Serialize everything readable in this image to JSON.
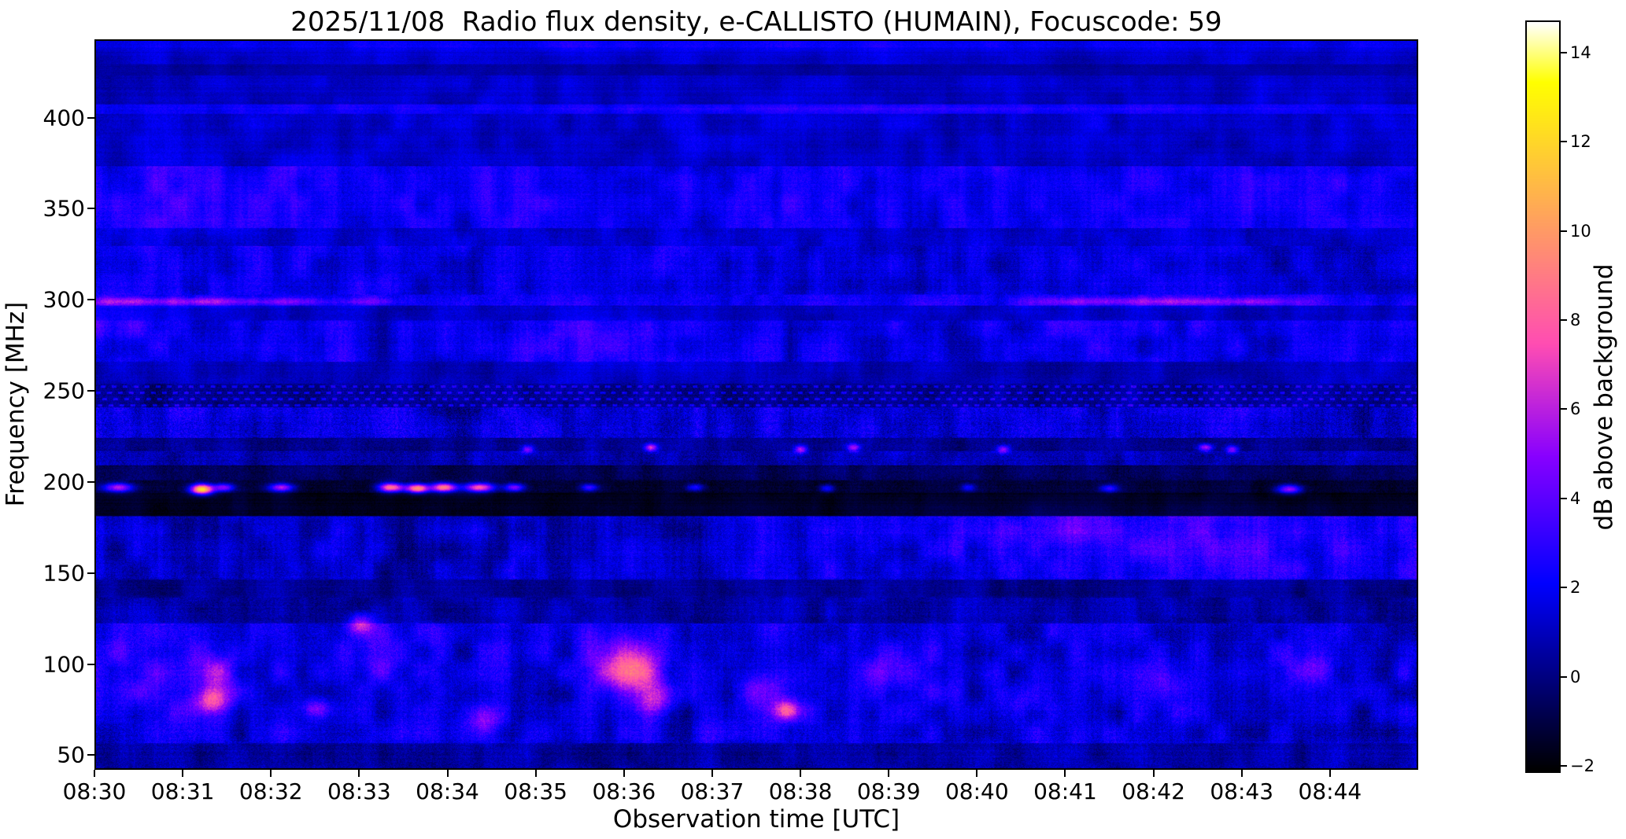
{
  "chart_data": {
    "type": "heatmap",
    "title": "2025/11/08  Radio flux density, e-CALLISTO (HUMAIN), Focuscode: 59",
    "date": "2025/11/08",
    "instrument": "e-CALLISTO",
    "station": "HUMAIN",
    "focuscode": "59",
    "xlabel": "Observation time [UTC]",
    "ylabel": "Frequency [MHz]",
    "colorbar_label": "dB above background",
    "x_ticks": [
      "08:30",
      "08:31",
      "08:32",
      "08:33",
      "08:34",
      "08:35",
      "08:36",
      "08:37",
      "08:38",
      "08:39",
      "08:40",
      "08:41",
      "08:42",
      "08:43",
      "08:44"
    ],
    "x_span_minutes": 15,
    "y_ticks": [
      400,
      350,
      300,
      250,
      200,
      150,
      100,
      50
    ],
    "ylim": [
      42,
      443
    ],
    "colorbar_tick_values": [
      14,
      12,
      10,
      8,
      6,
      4,
      2,
      0,
      -2
    ],
    "colorbar_tick_labels": [
      "14",
      "12",
      "10",
      "8",
      "6",
      "4",
      "2",
      "0",
      "−2"
    ],
    "clim": [
      -2.16,
      14.72
    ],
    "colormap": "gnuplot2",
    "grid": false,
    "bands": [
      {
        "f_lo": 430,
        "f_hi": 443,
        "base": 1.2,
        "noise": 0.5,
        "vstripe": 0.35,
        "blob": 0.5
      },
      {
        "f_lo": 424,
        "f_hi": 430,
        "base": 0.55,
        "noise": 0.4,
        "vstripe": 0.3,
        "blob": 0.3
      },
      {
        "f_lo": 408,
        "f_hi": 424,
        "base": 1.1,
        "noise": 0.5,
        "vstripe": 0.4,
        "blob": 0.5
      },
      {
        "f_lo": 403,
        "f_hi": 408,
        "base": 2.0,
        "noise": 0.6,
        "vstripe": 0.5,
        "blob": 0.4
      },
      {
        "f_lo": 374,
        "f_hi": 403,
        "base": 1.15,
        "noise": 0.6,
        "vstripe": 0.5,
        "blob": 0.6
      },
      {
        "f_lo": 340,
        "f_hi": 374,
        "base": 2.1,
        "noise": 0.8,
        "vstripe": 0.9,
        "blob": 0.8
      },
      {
        "f_lo": 330,
        "f_hi": 340,
        "base": 1.35,
        "noise": 0.7,
        "vstripe": 0.6,
        "blob": 0.6
      },
      {
        "f_lo": 303,
        "f_hi": 330,
        "base": 1.7,
        "noise": 0.9,
        "vstripe": 1.0,
        "blob": 0.8
      },
      {
        "f_lo": 297,
        "f_hi": 303,
        "base": 2.2,
        "noise": 0.9,
        "vstripe": 0.8,
        "blob": 0.6
      },
      {
        "f_lo": 289,
        "f_hi": 297,
        "base": 1.0,
        "noise": 0.6,
        "vstripe": 0.5,
        "blob": 0.5
      },
      {
        "f_lo": 266,
        "f_hi": 289,
        "base": 1.8,
        "noise": 0.9,
        "vstripe": 0.9,
        "blob": 0.9
      },
      {
        "f_lo": 254,
        "f_hi": 266,
        "base": 0.9,
        "noise": 0.6,
        "vstripe": 0.5,
        "blob": 0.5
      },
      {
        "f_lo": 241,
        "f_hi": 254,
        "base": 0.85,
        "noise": 0.8,
        "vstripe": 0.7,
        "blob": 0.4,
        "dots": 1.5
      },
      {
        "f_lo": 224,
        "f_hi": 241,
        "base": 1.6,
        "noise": 1.3,
        "vstripe": 1.2,
        "blob": 0.7
      },
      {
        "f_lo": 217,
        "f_hi": 224,
        "base": 0.25,
        "noise": 0.8,
        "vstripe": 0.6,
        "blob": 0.4
      },
      {
        "f_lo": 209,
        "f_hi": 217,
        "base": 0.7,
        "noise": 1.0,
        "vstripe": 0.8,
        "blob": 0.5
      },
      {
        "f_lo": 201,
        "f_hi": 209,
        "base": -0.7,
        "noise": 0.7,
        "vstripe": 0.5,
        "blob": 0.4
      },
      {
        "f_lo": 194,
        "f_hi": 201,
        "base": -1.2,
        "noise": 0.6,
        "vstripe": 0.4,
        "blob": 0.3
      },
      {
        "f_lo": 181,
        "f_hi": 194,
        "base": -1.6,
        "noise": 0.35,
        "vstripe": 0.25,
        "blob": 0.3
      },
      {
        "f_lo": 146,
        "f_hi": 181,
        "base": 1.2,
        "noise": 1.0,
        "vstripe": 1.1,
        "blob": 0.9,
        "ramp": 0.9
      },
      {
        "f_lo": 136,
        "f_hi": 146,
        "base": 0.25,
        "noise": 0.7,
        "vstripe": 0.6,
        "blob": 0.5
      },
      {
        "f_lo": 122,
        "f_hi": 136,
        "base": 0.6,
        "noise": 0.9,
        "vstripe": 0.8,
        "blob": 0.7
      },
      {
        "f_lo": 56,
        "f_hi": 122,
        "base": 1.5,
        "noise": 1.1,
        "vstripe": 0.9,
        "blob": 1.2
      },
      {
        "f_lo": 42,
        "f_hi": 56,
        "base": 0.6,
        "noise": 0.9,
        "vstripe": 0.7,
        "blob": 0.6
      }
    ],
    "features": [
      {
        "t": 0.35,
        "f": 299.5,
        "st": 0.45,
        "sf": 1.6,
        "amp": 3.2
      },
      {
        "t": 1.35,
        "f": 299.5,
        "st": 0.35,
        "sf": 1.6,
        "amp": 3.4
      },
      {
        "t": 2.2,
        "f": 299.5,
        "st": 0.25,
        "sf": 1.5,
        "amp": 2.6
      },
      {
        "t": 3.1,
        "f": 299.5,
        "st": 0.3,
        "sf": 1.5,
        "amp": 2.0
      },
      {
        "t": 11.2,
        "f": 299.5,
        "st": 0.45,
        "sf": 1.6,
        "amp": 2.6
      },
      {
        "t": 12.3,
        "f": 299.5,
        "st": 0.5,
        "sf": 1.6,
        "amp": 2.8
      },
      {
        "t": 13.2,
        "f": 299.5,
        "st": 0.3,
        "sf": 1.5,
        "amp": 2.2
      },
      {
        "t": 0.25,
        "f": 197,
        "st": 0.12,
        "sf": 1.8,
        "amp": 7
      },
      {
        "t": 1.2,
        "f": 196,
        "st": 0.09,
        "sf": 2.0,
        "amp": 13.5
      },
      {
        "t": 1.45,
        "f": 197,
        "st": 0.08,
        "sf": 1.6,
        "amp": 6
      },
      {
        "t": 2.1,
        "f": 197,
        "st": 0.1,
        "sf": 1.6,
        "amp": 6.5
      },
      {
        "t": 3.35,
        "f": 197,
        "st": 0.1,
        "sf": 1.8,
        "amp": 10
      },
      {
        "t": 3.65,
        "f": 196.5,
        "st": 0.09,
        "sf": 1.8,
        "amp": 11
      },
      {
        "t": 3.95,
        "f": 197,
        "st": 0.1,
        "sf": 1.8,
        "amp": 10.5
      },
      {
        "t": 4.35,
        "f": 197,
        "st": 0.12,
        "sf": 1.8,
        "amp": 9
      },
      {
        "t": 4.75,
        "f": 197,
        "st": 0.08,
        "sf": 1.6,
        "amp": 6
      },
      {
        "t": 5.6,
        "f": 197,
        "st": 0.07,
        "sf": 1.5,
        "amp": 4.5
      },
      {
        "t": 6.8,
        "f": 197,
        "st": 0.07,
        "sf": 1.5,
        "amp": 4
      },
      {
        "t": 8.3,
        "f": 196.5,
        "st": 0.06,
        "sf": 1.5,
        "amp": 4
      },
      {
        "t": 9.9,
        "f": 197,
        "st": 0.06,
        "sf": 1.5,
        "amp": 3.5
      },
      {
        "t": 11.5,
        "f": 196.5,
        "st": 0.07,
        "sf": 1.5,
        "amp": 4
      },
      {
        "t": 13.55,
        "f": 196,
        "st": 0.1,
        "sf": 1.8,
        "amp": 6.5
      },
      {
        "t": 4.9,
        "f": 218,
        "st": 0.05,
        "sf": 1.5,
        "amp": 4.5
      },
      {
        "t": 6.3,
        "f": 219,
        "st": 0.05,
        "sf": 1.5,
        "amp": 6
      },
      {
        "t": 8.0,
        "f": 218,
        "st": 0.05,
        "sf": 1.5,
        "amp": 5.5
      },
      {
        "t": 8.6,
        "f": 219,
        "st": 0.05,
        "sf": 1.5,
        "amp": 5
      },
      {
        "t": 10.3,
        "f": 218,
        "st": 0.05,
        "sf": 1.5,
        "amp": 5
      },
      {
        "t": 12.6,
        "f": 219,
        "st": 0.06,
        "sf": 1.5,
        "amp": 6
      },
      {
        "t": 12.9,
        "f": 218,
        "st": 0.05,
        "sf": 1.5,
        "amp": 5
      },
      {
        "t": 0.5,
        "f": 100,
        "st": 0.5,
        "sf": 22,
        "amp": 1.4
      },
      {
        "t": 1.3,
        "f": 80,
        "st": 0.15,
        "sf": 5,
        "amp": 5.5
      },
      {
        "t": 1.35,
        "f": 95,
        "st": 0.2,
        "sf": 8,
        "amp": 3
      },
      {
        "t": 2.5,
        "f": 75,
        "st": 0.12,
        "sf": 4,
        "amp": 3.5
      },
      {
        "t": 3.0,
        "f": 122,
        "st": 0.1,
        "sf": 4,
        "amp": 5
      },
      {
        "t": 3.2,
        "f": 105,
        "st": 0.3,
        "sf": 10,
        "amp": 2
      },
      {
        "t": 4.4,
        "f": 70,
        "st": 0.15,
        "sf": 5,
        "amp": 3
      },
      {
        "t": 5.9,
        "f": 100,
        "st": 0.3,
        "sf": 12,
        "amp": 3.5
      },
      {
        "t": 6.15,
        "f": 95,
        "st": 0.2,
        "sf": 10,
        "amp": 4.5
      },
      {
        "t": 6.35,
        "f": 80,
        "st": 0.15,
        "sf": 6,
        "amp": 3.5
      },
      {
        "t": 7.6,
        "f": 85,
        "st": 0.2,
        "sf": 7,
        "amp": 2.5
      },
      {
        "t": 7.85,
        "f": 74,
        "st": 0.1,
        "sf": 4,
        "amp": 6
      },
      {
        "t": 9.0,
        "f": 95,
        "st": 0.25,
        "sf": 9,
        "amp": 2
      },
      {
        "t": 10.5,
        "f": 80,
        "st": 0.2,
        "sf": 7,
        "amp": 1.8
      },
      {
        "t": 12.2,
        "f": 90,
        "st": 0.2,
        "sf": 8,
        "amp": 1.8
      },
      {
        "t": 13.8,
        "f": 100,
        "st": 0.25,
        "sf": 9,
        "amp": 2
      },
      {
        "t": 0.3,
        "f": 285,
        "st": 0.5,
        "sf": 8,
        "amp": 1.2
      },
      {
        "t": 5.8,
        "f": 278,
        "st": 0.6,
        "sf": 9,
        "amp": 1.3
      },
      {
        "t": 1.0,
        "f": 355,
        "st": 0.8,
        "sf": 10,
        "amp": 0.8
      },
      {
        "t": 10.8,
        "f": 170,
        "st": 1.2,
        "sf": 12,
        "amp": 1.0
      },
      {
        "t": 13.0,
        "f": 165,
        "st": 1.0,
        "sf": 12,
        "amp": 1.0
      },
      {
        "t": 9.0,
        "f": 405.5,
        "st": 3.0,
        "sf": 1.5,
        "amp": 0.8
      },
      {
        "t": 7.5,
        "f": 441,
        "st": 8.0,
        "sf": 2,
        "amp": 1.0
      }
    ]
  }
}
